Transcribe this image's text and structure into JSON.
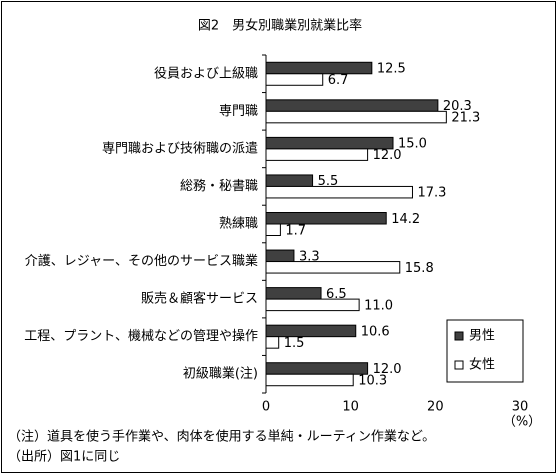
{
  "chart_data": {
    "type": "barh",
    "title": "図2　男女別職業別就業比率",
    "categories": [
      "役員および上級職",
      "専門職",
      "専門職および技術職の派遣",
      "総務・秘書職",
      "熟練職",
      "介護、レジャー、その他のサービス職業",
      "販売＆顧客サービス",
      "工程、プラント、機械などの管理や操作",
      "初級職業(注)"
    ],
    "series": [
      {
        "name": "男性",
        "color": "#404040",
        "values": [
          12.5,
          20.3,
          15.0,
          5.5,
          14.2,
          3.3,
          6.5,
          10.6,
          12.0
        ],
        "value_labels": [
          "12.5",
          "20.3",
          "15.0",
          "5.5",
          "14.2",
          "3.3",
          "6.5",
          "10.6",
          "12.0"
        ]
      },
      {
        "name": "女性",
        "color": "#ffffff",
        "values": [
          6.7,
          21.3,
          12.0,
          17.3,
          1.7,
          15.8,
          11.0,
          1.5,
          10.3
        ],
        "value_labels": [
          "6.7",
          "21.3",
          "12.0",
          "17.3",
          "1.7",
          "15.8",
          "11.0",
          "1.5",
          "10.3"
        ]
      }
    ],
    "xlim": [
      0,
      30
    ],
    "xticks": [
      0,
      10,
      20,
      30
    ],
    "x_unit": "（%）",
    "legend": "lower right",
    "notes": [
      "（注）道具を使う手作業や、肉体を使用する単純・ルーティン作業など。",
      "（出所）図1に同じ"
    ]
  }
}
